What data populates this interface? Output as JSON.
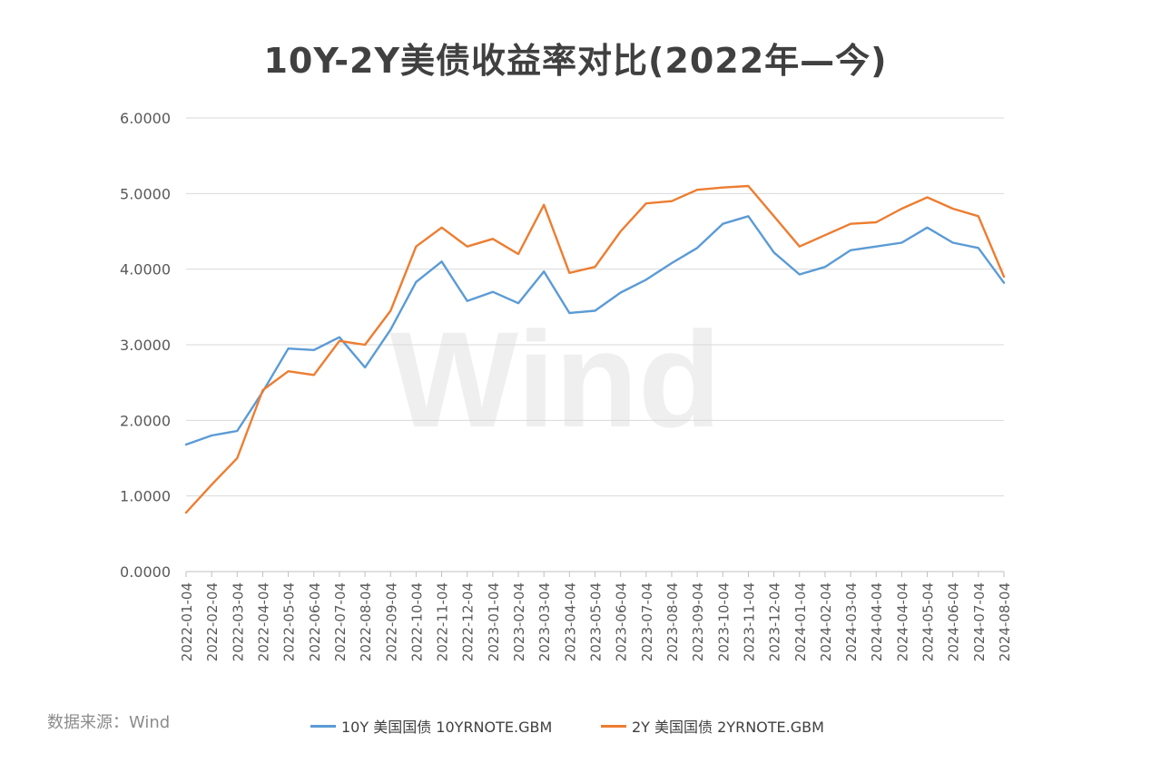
{
  "chart_data": {
    "type": "line",
    "title": "10Y-2Y美债收益率对比(2022年—今)",
    "watermark": "Wind",
    "source": "数据来源：Wind",
    "ylim": [
      0,
      6
    ],
    "y_ticks": [
      "0.0000",
      "1.0000",
      "2.0000",
      "3.0000",
      "4.0000",
      "5.0000",
      "6.0000"
    ],
    "grid": true,
    "legend_position": "bottom",
    "categories": [
      "2022-01-04",
      "2022-02-04",
      "2022-03-04",
      "2022-04-04",
      "2022-05-04",
      "2022-06-04",
      "2022-07-04",
      "2022-08-04",
      "2022-09-04",
      "2022-10-04",
      "2022-11-04",
      "2022-12-04",
      "2023-01-04",
      "2023-02-04",
      "2023-03-04",
      "2023-04-04",
      "2023-05-04",
      "2023-06-04",
      "2023-07-04",
      "2023-08-04",
      "2023-09-04",
      "2023-10-04",
      "2023-11-04",
      "2023-12-04",
      "2024-01-04",
      "2024-02-04",
      "2024-03-04",
      "2024-04-04",
      "2024-04-04",
      "2024-05-04",
      "2024-06-04",
      "2024-07-04",
      "2024-08-04"
    ],
    "series": [
      {
        "name": "10Y 美国国债 10YRNOTE.GBM",
        "color": "#5b9bd5",
        "values": [
          1.68,
          1.8,
          1.86,
          2.38,
          2.95,
          2.93,
          3.1,
          2.7,
          3.2,
          3.83,
          4.1,
          3.58,
          3.7,
          3.55,
          3.97,
          3.42,
          3.45,
          3.69,
          3.86,
          4.08,
          4.28,
          4.6,
          4.7,
          4.22,
          3.93,
          4.03,
          4.25,
          4.3,
          4.35,
          4.55,
          4.35,
          4.28,
          3.82
        ]
      },
      {
        "name": "2Y 美国国债 2YRNOTE.GBM",
        "color": "#ed7d31",
        "values": [
          0.78,
          1.15,
          1.5,
          2.4,
          2.65,
          2.6,
          3.05,
          3.0,
          3.45,
          4.3,
          4.55,
          4.3,
          4.4,
          4.2,
          4.85,
          3.95,
          4.03,
          4.5,
          4.87,
          4.9,
          5.05,
          5.08,
          5.1,
          4.7,
          4.3,
          4.45,
          4.6,
          4.62,
          4.8,
          4.95,
          4.8,
          4.7,
          3.9
        ]
      }
    ]
  }
}
